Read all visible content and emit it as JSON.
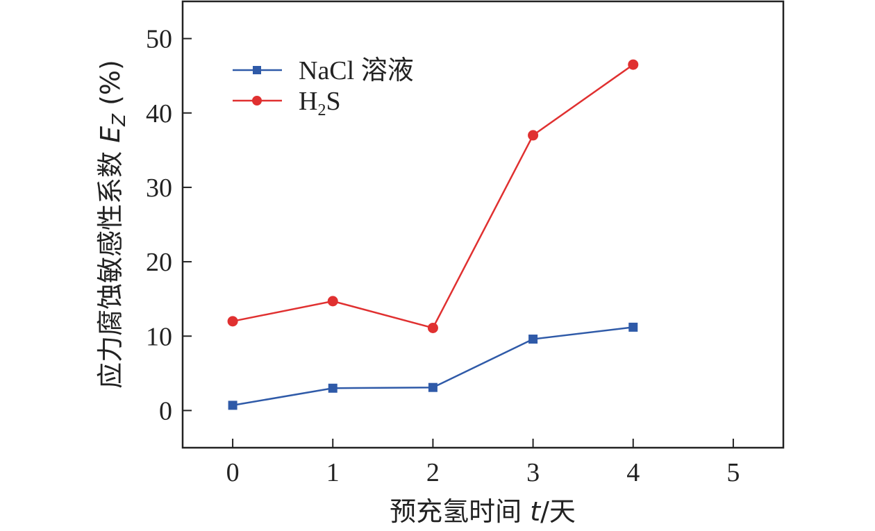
{
  "chart_data": {
    "type": "line",
    "xlabel": {
      "prefix": "预充氢时间 ",
      "var": "t",
      "suffix": "/天"
    },
    "ylabel": {
      "prefix": "应力腐蚀敏感性系数 ",
      "var": "E",
      "sub": "Z",
      "suffix": " (%)"
    },
    "xlim": [
      -0.5,
      5.5
    ],
    "ylim": [
      -5,
      55
    ],
    "x_ticks": [
      0,
      1,
      2,
      3,
      4,
      5
    ],
    "x_tick_labels": [
      "0",
      "1",
      "2",
      "3",
      "4",
      "5"
    ],
    "y_ticks": [
      0,
      10,
      20,
      30,
      40,
      50
    ],
    "y_tick_labels": [
      "0",
      "10",
      "20",
      "30",
      "40",
      "50"
    ],
    "legend_position": "top-left",
    "series": [
      {
        "name": "NaCl 溶液",
        "color": "#2f5aa8",
        "marker": "square",
        "x": [
          0,
          1,
          2,
          3,
          4
        ],
        "y": [
          0.7,
          3.0,
          3.1,
          9.6,
          11.2
        ]
      },
      {
        "name_main": "H",
        "name_sub": "2",
        "name_tail": "S",
        "color": "#e03030",
        "marker": "circle",
        "x": [
          0,
          1,
          2,
          3,
          4
        ],
        "y": [
          12.0,
          14.7,
          11.1,
          37.0,
          46.5
        ]
      }
    ]
  }
}
